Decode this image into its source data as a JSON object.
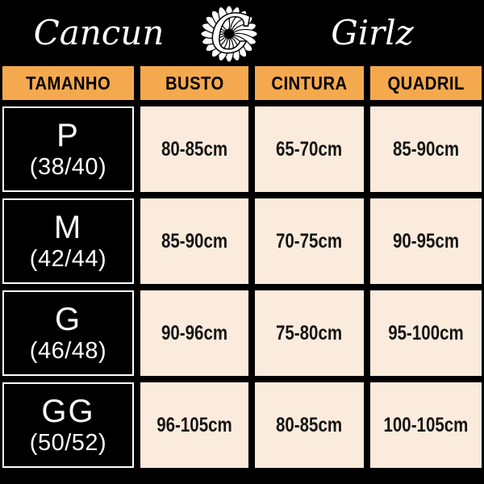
{
  "brand": {
    "name_left": "Cancun",
    "name_right": "Girlz",
    "logo_letter": "C"
  },
  "colors": {
    "background": "#000000",
    "header_bg": "#F5A94E",
    "header_text": "#000000",
    "cell_bg": "#FBEBDC",
    "cell_text": "#141414",
    "size_cell_bg": "#000000",
    "size_cell_text": "#FFFFFF"
  },
  "table": {
    "columns": [
      "TAMANHO",
      "BUSTO",
      "CINTURA",
      "QUADRIL"
    ],
    "rows": [
      {
        "size": "P",
        "range": "(38/40)",
        "busto": "80-85cm",
        "cintura": "65-70cm",
        "quadril": "85-90cm"
      },
      {
        "size": "M",
        "range": "(42/44)",
        "busto": "85-90cm",
        "cintura": "70-75cm",
        "quadril": "90-95cm"
      },
      {
        "size": "G",
        "range": "(46/48)",
        "busto": "90-96cm",
        "cintura": "75-80cm",
        "quadril": "95-100cm"
      },
      {
        "size": "GG",
        "range": "(50/52)",
        "busto": "96-105cm",
        "cintura": "80-85cm",
        "quadril": "100-105cm"
      }
    ]
  },
  "chart_data": {
    "type": "table",
    "columns": [
      "TAMANHO",
      "BUSTO",
      "CINTURA",
      "QUADRIL"
    ],
    "rows": [
      [
        "P (38/40)",
        "80-85cm",
        "65-70cm",
        "85-90cm"
      ],
      [
        "M (42/44)",
        "85-90cm",
        "70-75cm",
        "90-95cm"
      ],
      [
        "G (46/48)",
        "90-96cm",
        "75-80cm",
        "95-100cm"
      ],
      [
        "GG (50/52)",
        "96-105cm",
        "80-85cm",
        "100-105cm"
      ]
    ]
  }
}
